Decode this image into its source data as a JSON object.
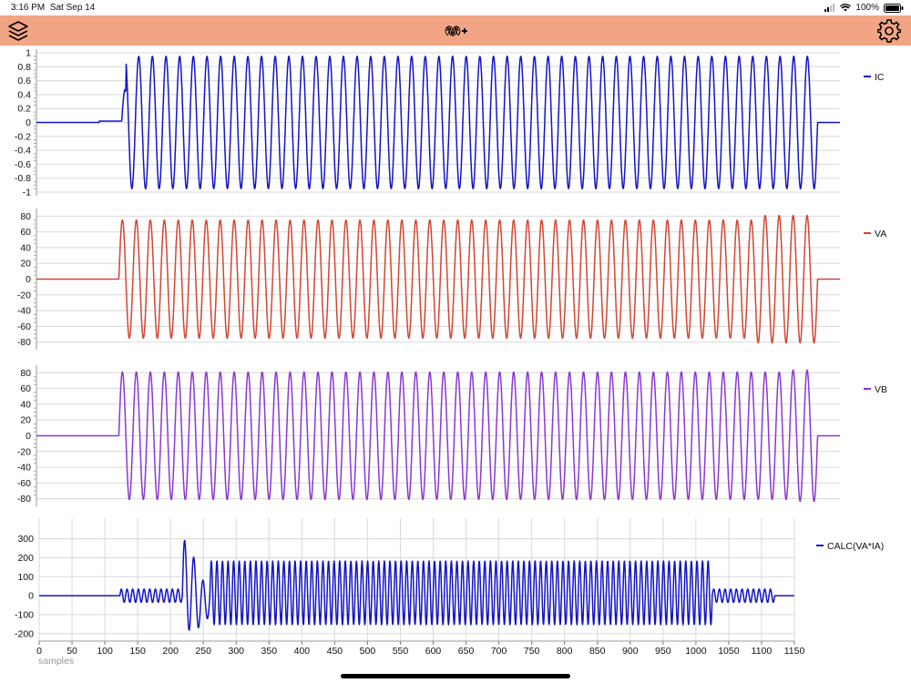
{
  "status": {
    "time": "3:16 PM",
    "date": "Sat Sep 14",
    "battery": "100%"
  },
  "toolbar": {
    "layers_icon": "layers-icon",
    "add_wave_icon": "waveform-add-icon",
    "settings_icon": "gear-icon"
  },
  "charts": [
    {
      "legend": "IC",
      "color": "#1414C8",
      "chart_data": {
        "type": "line",
        "series": [
          {
            "name": "IC"
          }
        ],
        "ylim": [
          -1,
          1
        ],
        "yticks": [
          "1",
          "0.8",
          "0.6",
          "0.4",
          "0.2",
          "0",
          "-0.2",
          "-0.4",
          "-0.6",
          "-0.8",
          "-1"
        ],
        "signal": {
          "start": 122,
          "end": 1118,
          "cycles": 51,
          "amplitude": 0.95
        }
      }
    },
    {
      "legend": "VA",
      "color": "#D24632",
      "chart_data": {
        "type": "line",
        "series": [
          {
            "name": "VA"
          }
        ],
        "ylim": [
          -85,
          85
        ],
        "yticks": [
          "80",
          "60",
          "40",
          "20",
          "0",
          "-20",
          "-40",
          "-60",
          "-80"
        ],
        "signal": {
          "start": 118,
          "end": 1118,
          "cycles": 50,
          "amplitude": 75
        }
      }
    },
    {
      "legend": "VB",
      "color": "#8C37D2",
      "chart_data": {
        "type": "line",
        "series": [
          {
            "name": "VB"
          }
        ],
        "ylim": [
          -85,
          85
        ],
        "yticks": [
          "80",
          "60",
          "40",
          "20",
          "0",
          "-20",
          "-40",
          "-60",
          "-80"
        ],
        "signal": {
          "start": 118,
          "end": 1118,
          "cycles": 50,
          "amplitude": 81
        }
      }
    },
    {
      "legend": "CALC(VA*IA)",
      "color": "#1414C8",
      "chart_data": {
        "type": "line",
        "series": [
          {
            "name": "CALC(VA*IA)"
          }
        ],
        "ylim": [
          -230,
          380
        ],
        "yticks": [
          "300",
          "200",
          "100",
          "0",
          "-100",
          "-200"
        ],
        "xticks": [
          "0",
          "50",
          "100",
          "150",
          "200",
          "250",
          "300",
          "350",
          "400",
          "450",
          "500",
          "550",
          "600",
          "650",
          "700",
          "750",
          "800",
          "850",
          "900",
          "950",
          "1000",
          "1050",
          "1100",
          "1150"
        ],
        "xlabel": "samples",
        "signal": {
          "start": 123,
          "end": 1120,
          "amplitude": 180
        }
      }
    }
  ]
}
